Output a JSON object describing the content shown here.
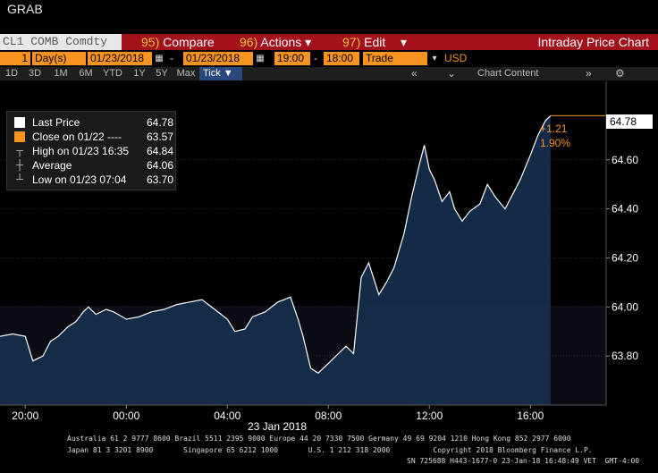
{
  "app": {
    "title": "GRAB",
    "window_title": "Intraday Price Chart"
  },
  "toolbar": {
    "ticker": "CL1 COMB Comdty",
    "compare_num": "95)",
    "compare_label": "Compare",
    "actions_num": "96)",
    "actions_label": "Actions",
    "edit_num": "97)",
    "edit_label": "Edit",
    "dropdown_glyph": "▾"
  },
  "controls": {
    "period_value": "1",
    "period_unit": "Day(s)",
    "start_date": "01/23/2018",
    "end_date": "01/23/2018",
    "start_time": "19:00",
    "end_time": "18:00",
    "data_type": "Trade",
    "currency": "USD",
    "date_separator": "-",
    "time_separator": "-"
  },
  "periods": [
    "1D",
    "3D",
    "1M",
    "6M",
    "YTD",
    "1Y",
    "5Y",
    "Max"
  ],
  "tick_button": "Tick ▼",
  "nav": {
    "left": "«",
    "down": "⌄",
    "right": "»",
    "chart_content": "Chart Content"
  },
  "legend": {
    "items": [
      {
        "label": "Last Price",
        "value": "64.78"
      },
      {
        "label": "Close on 01/22 ----",
        "value": "63.57"
      },
      {
        "label": "High on 01/23 16:35",
        "value": "64.84"
      },
      {
        "label": "Average",
        "value": "64.06"
      },
      {
        "label": "Low on 01/23 07:04",
        "value": "63.70"
      }
    ]
  },
  "price_tag": "64.78",
  "change": {
    "abs": "+1.21",
    "pct": "1.90%"
  },
  "colors": {
    "accent": "#f7931e",
    "toolbar": "#a3121b",
    "area_fill": "#16304f",
    "line": "#ffffff",
    "tick_button": "#29487d"
  },
  "chart_data": {
    "type": "line",
    "title": "",
    "xlabel": "23 Jan 2018",
    "ylabel": "",
    "x_ticks": [
      "20:00",
      "00:00",
      "04:00",
      "08:00",
      "12:00",
      "16:00"
    ],
    "x_tick_hours": [
      -4,
      0,
      4,
      8,
      12,
      16
    ],
    "xlim_hours": [
      -5,
      19
    ],
    "y_ticks": [
      "63.80",
      "64.00",
      "64.20",
      "64.40",
      "64.60"
    ],
    "y_tick_values": [
      63.8,
      64.0,
      64.2,
      64.4,
      64.6
    ],
    "ylim": [
      63.6,
      64.92
    ],
    "last_price": 64.78,
    "previous_close": 63.57,
    "grid": true,
    "legend_position": "top-left",
    "series": [
      {
        "name": "Last Price",
        "x_hours": [
          -5,
          -4.5,
          -4,
          -3.7,
          -3.3,
          -3,
          -2.7,
          -2.3,
          -2,
          -1.7,
          -1.5,
          -1.2,
          -0.8,
          -0.5,
          0,
          0.5,
          1,
          1.5,
          2,
          2.5,
          3,
          3.5,
          4,
          4.3,
          4.7,
          5,
          5.5,
          6,
          6.5,
          6.8,
          7,
          7.3,
          7.6,
          8,
          8.3,
          8.7,
          9,
          9.3,
          9.6,
          10,
          10.3,
          10.6,
          11,
          11.3,
          11.6,
          11.8,
          12,
          12.2,
          12.5,
          12.8,
          13,
          13.3,
          13.6,
          14,
          14.3,
          14.6,
          15,
          15.3,
          15.6,
          16,
          16.3,
          16.6,
          16.8
        ],
        "y": [
          63.88,
          63.89,
          63.88,
          63.78,
          63.8,
          63.86,
          63.88,
          63.92,
          63.94,
          63.98,
          64.0,
          63.97,
          63.99,
          63.98,
          63.95,
          63.96,
          63.98,
          63.99,
          64.01,
          64.02,
          64.03,
          63.99,
          63.95,
          63.9,
          63.91,
          63.96,
          63.98,
          64.02,
          64.04,
          63.95,
          63.88,
          63.75,
          63.73,
          63.77,
          63.8,
          63.84,
          63.81,
          64.12,
          64.18,
          64.05,
          64.1,
          64.16,
          64.3,
          64.45,
          64.58,
          64.66,
          64.56,
          64.52,
          64.43,
          64.47,
          64.4,
          64.35,
          64.39,
          64.42,
          64.5,
          64.45,
          64.4,
          64.46,
          64.52,
          64.62,
          64.7,
          64.76,
          64.78
        ]
      }
    ]
  },
  "footer": {
    "line1": "Australia 61 2 9777 8600 Brazil 5511 2395 9000 Europe 44 20 7330 7500 Germany 49 69 9204 1210 Hong Kong 852 2977 6000",
    "line2": "Japan 81 3 3201 8900       Singapore 65 6212 1000       U.S. 1 212 318 2000          Copyright 2018 Bloomberg Finance L.P.",
    "line3": "SN 725688 H443-1677-0 23-Jan-18 16:48:49 VET  GMT-4:00"
  }
}
